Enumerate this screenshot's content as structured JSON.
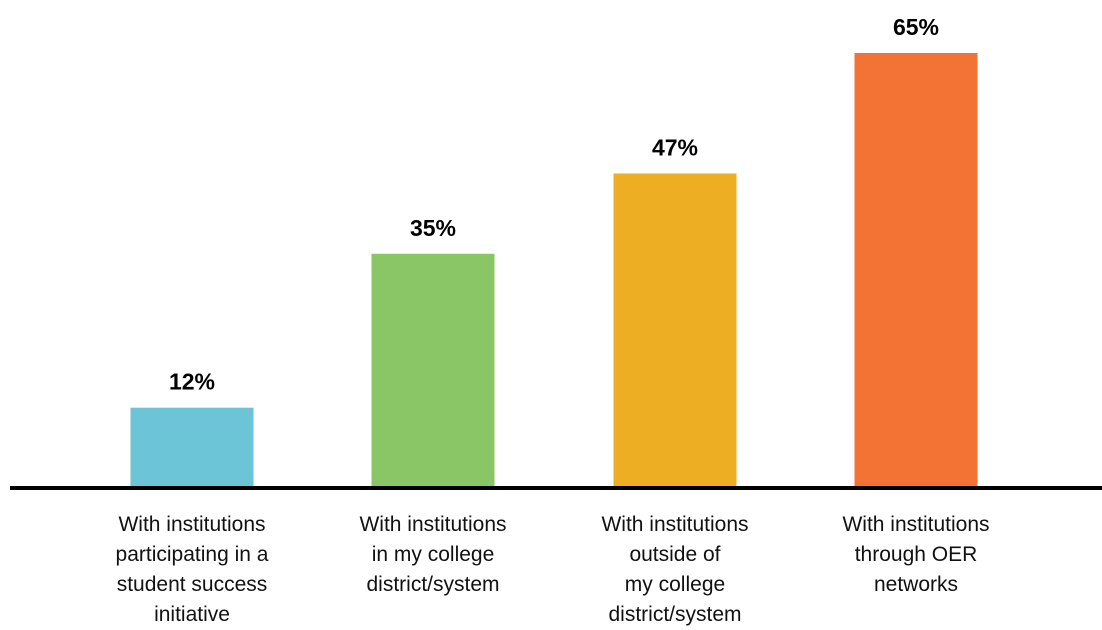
{
  "chart_data": {
    "type": "bar",
    "title": "",
    "xlabel": "",
    "ylabel": "",
    "ylim": [
      0,
      65
    ],
    "grid": false,
    "categories": [
      [
        "With institutions",
        "participating in a",
        "student success",
        "initiative"
      ],
      [
        "With institutions",
        "in my college",
        "district/system"
      ],
      [
        "With institutions",
        "outside of",
        "my college",
        "district/system"
      ],
      [
        "With institutions",
        "through OER",
        "networks"
      ]
    ],
    "values": [
      12,
      35,
      47,
      65
    ],
    "value_labels": [
      "12%",
      "35%",
      "47%",
      "65%"
    ],
    "colors": [
      "#6cc5d6",
      "#8ac666",
      "#eeae23",
      "#f37335"
    ],
    "axis_color": "#000000"
  }
}
